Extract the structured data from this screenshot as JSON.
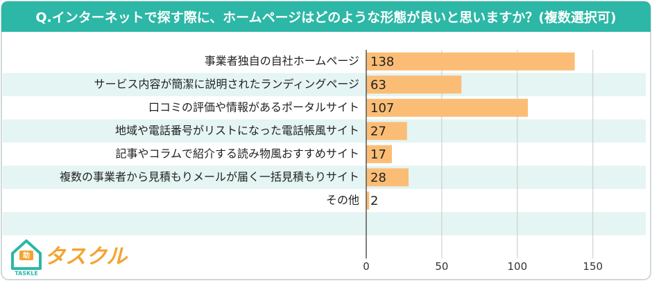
{
  "chart_data": {
    "type": "barh",
    "title": "Q.インターネットで探す際に、ホームページはどのような形態が良いと思いますか？(複数選択可)",
    "categories": [
      "事業者独自の自社ホームページ",
      "サービス内容が簡潔に説明されたランディングページ",
      "口コミの評価や情報があるポータルサイト",
      "地域や電話番号がリストになった電話帳風サイト",
      "記事やコラムで紹介する読み物風おすすめサイト",
      "複数の事業者から見積もりメールが届く一括見積もりサイト",
      "その他"
    ],
    "values": [
      138,
      63,
      107,
      27,
      17,
      28,
      2
    ],
    "color": "#fbbd76",
    "xlim": [
      0,
      185
    ],
    "xticks": [
      0,
      50,
      100,
      150
    ],
    "grid": true
  },
  "brand": {
    "name": "タスクル",
    "sub": "TASKLE",
    "icon": "助"
  }
}
